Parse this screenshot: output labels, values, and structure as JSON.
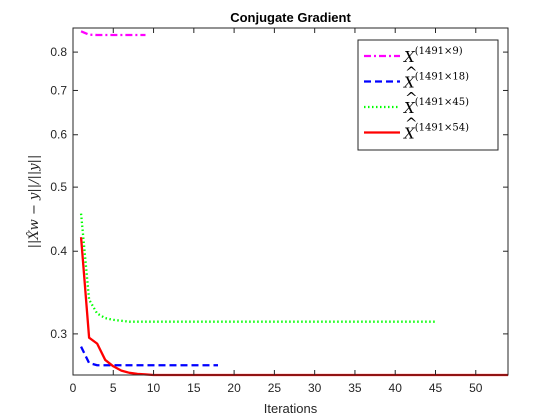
{
  "chart_data": {
    "type": "line",
    "title": "Conjugate Gradient",
    "xlabel": "Iterations",
    "ylabel": "||X̂w − y||/||y||",
    "xlim": [
      0,
      54
    ],
    "ylim": [
      0.26,
      0.87
    ],
    "y_scale": "log",
    "x_ticks": [
      0,
      5,
      10,
      15,
      20,
      25,
      30,
      35,
      40,
      45,
      50
    ],
    "y_ticks": [
      0.3,
      0.4,
      0.5,
      0.6,
      0.7,
      0.8
    ],
    "y_tick_labels": [
      "0.3",
      "0.4",
      "0.5",
      "0.6",
      "0.7",
      "0.8"
    ],
    "grid": false,
    "legend_position": "top-right",
    "series": [
      {
        "name": "X^(1491×9)",
        "legend_base": "X",
        "legend_hat": false,
        "legend_sup": "(1491×9)",
        "color": "#ff00ff",
        "style": "dashdot",
        "x": [
          1,
          2,
          3,
          4,
          5,
          6,
          7,
          8,
          9
        ],
        "values": [
          0.86,
          0.85,
          0.849,
          0.849,
          0.849,
          0.849,
          0.849,
          0.849,
          0.849
        ]
      },
      {
        "name": "X̂^(1491×18)",
        "legend_base": "X",
        "legend_hat": true,
        "legend_sup": "(1491×18)",
        "color": "#0000ff",
        "style": "dashed",
        "x": [
          1,
          2,
          3,
          4,
          5,
          6,
          7,
          8,
          9,
          10,
          11,
          12,
          13,
          14,
          15,
          16,
          17,
          18
        ],
        "values": [
          0.287,
          0.271,
          0.269,
          0.269,
          0.269,
          0.269,
          0.269,
          0.269,
          0.269,
          0.269,
          0.269,
          0.269,
          0.269,
          0.269,
          0.269,
          0.269,
          0.269,
          0.269
        ]
      },
      {
        "name": "X̂^(1491×45)",
        "legend_base": "X",
        "legend_hat": true,
        "legend_sup": "(1491×45)",
        "color": "#00ff00",
        "style": "dotted",
        "x": [
          1,
          2,
          3,
          4,
          5,
          6,
          7,
          8,
          9,
          10,
          12,
          14,
          16,
          18,
          20,
          25,
          30,
          35,
          40,
          45
        ],
        "values": [
          0.456,
          0.338,
          0.322,
          0.317,
          0.315,
          0.314,
          0.313,
          0.313,
          0.313,
          0.313,
          0.313,
          0.313,
          0.313,
          0.313,
          0.313,
          0.313,
          0.313,
          0.313,
          0.313,
          0.313
        ]
      },
      {
        "name": "X̂^(1491×54)",
        "legend_base": "X",
        "legend_hat": true,
        "legend_sup": "(1491×54)",
        "color": "#ff0000",
        "style": "solid",
        "x": [
          1,
          2,
          3,
          4,
          5,
          6,
          7,
          8,
          9,
          10,
          11,
          12,
          13,
          14,
          15,
          20,
          25,
          30,
          35,
          40,
          45,
          50,
          54
        ],
        "values": [
          0.42,
          0.296,
          0.29,
          0.274,
          0.268,
          0.264,
          0.262,
          0.261,
          0.2605,
          0.26,
          0.26,
          0.26,
          0.26,
          0.26,
          0.26,
          0.26,
          0.26,
          0.26,
          0.26,
          0.26,
          0.26,
          0.26,
          0.26
        ]
      }
    ]
  }
}
